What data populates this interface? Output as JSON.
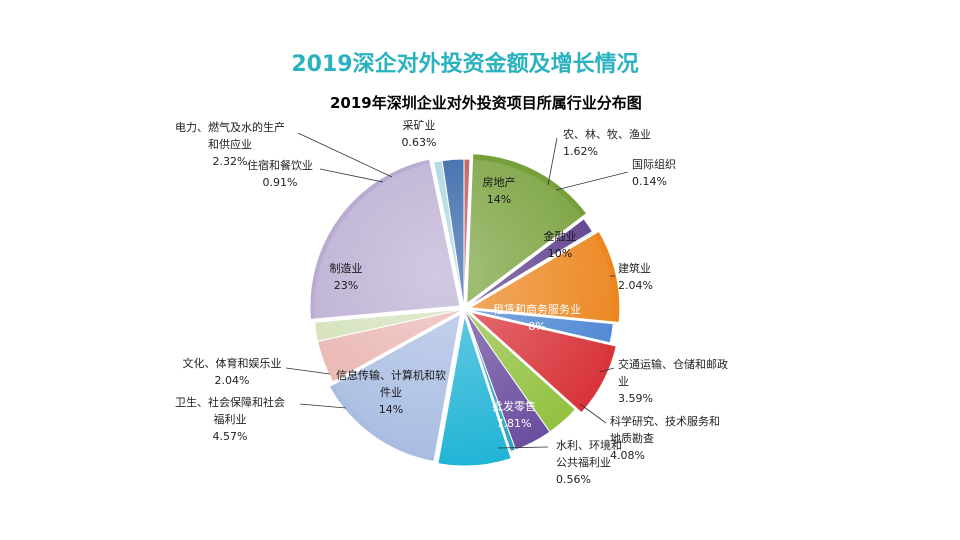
{
  "slide_title": "2019深企对外投资金额及增长情况",
  "chart_data": {
    "type": "pie",
    "title": "2019年深圳企业对外投资项目所属行业分布图",
    "slices": [
      {
        "label": "采矿业",
        "value": 0.63,
        "display": "0.63%",
        "color": "#c0504d"
      },
      {
        "label": "房地产",
        "value": 14,
        "display": "14%",
        "color": "#77a03a"
      },
      {
        "label": "农、林、牧、渔业",
        "value": 1.62,
        "display": "1.62%",
        "color": "#5b3d8a"
      },
      {
        "label": "国际组织",
        "value": 0.14,
        "display": "0.14%",
        "color": "#2e9db8"
      },
      {
        "label": "金融业",
        "value": 10,
        "display": "10%",
        "color": "#ec861f"
      },
      {
        "label": "建筑业",
        "value": 2.04,
        "display": "2.04%",
        "color": "#4e87d4"
      },
      {
        "label": "租赁和商务服务业",
        "value": 8,
        "display": "8%",
        "color": "#d8343a"
      },
      {
        "label": "交通运输、仓储和邮政业",
        "value": 3.59,
        "display": "3.59%",
        "color": "#93c140"
      },
      {
        "label": "科学研究、技术服务和地质勘查",
        "value": 4.08,
        "display": "4.08%",
        "color": "#6a4d9e"
      },
      {
        "label": "水利、环境和公共福利业",
        "value": 0.56,
        "display": "0.56%",
        "color": "#2aa5c4"
      },
      {
        "label": "批发零售",
        "value": 7.81,
        "display": "7.81%",
        "color": "#22b4d6"
      },
      {
        "label": "信息传输、计算机和软件业",
        "value": 14,
        "display": "14%",
        "color": "#a9bde2"
      },
      {
        "label": "卫生、社会保障和社会福利业",
        "value": 4.57,
        "display": "4.57%",
        "color": "#e9b4b0"
      },
      {
        "label": "文化、体育和娱乐业",
        "value": 2.04,
        "display": "2.04%",
        "color": "#d2e1b7"
      },
      {
        "label": "制造业",
        "value": 23,
        "display": "23%",
        "color": "#b9acd1"
      },
      {
        "label": "住宿和餐饮业",
        "value": 0.91,
        "display": "0.91%",
        "color": "#a7d5df"
      },
      {
        "label": "电力、燃气及水的生产和供应业",
        "value": 2.32,
        "display": "2.32%",
        "color": "#2b5ea5"
      }
    ]
  }
}
